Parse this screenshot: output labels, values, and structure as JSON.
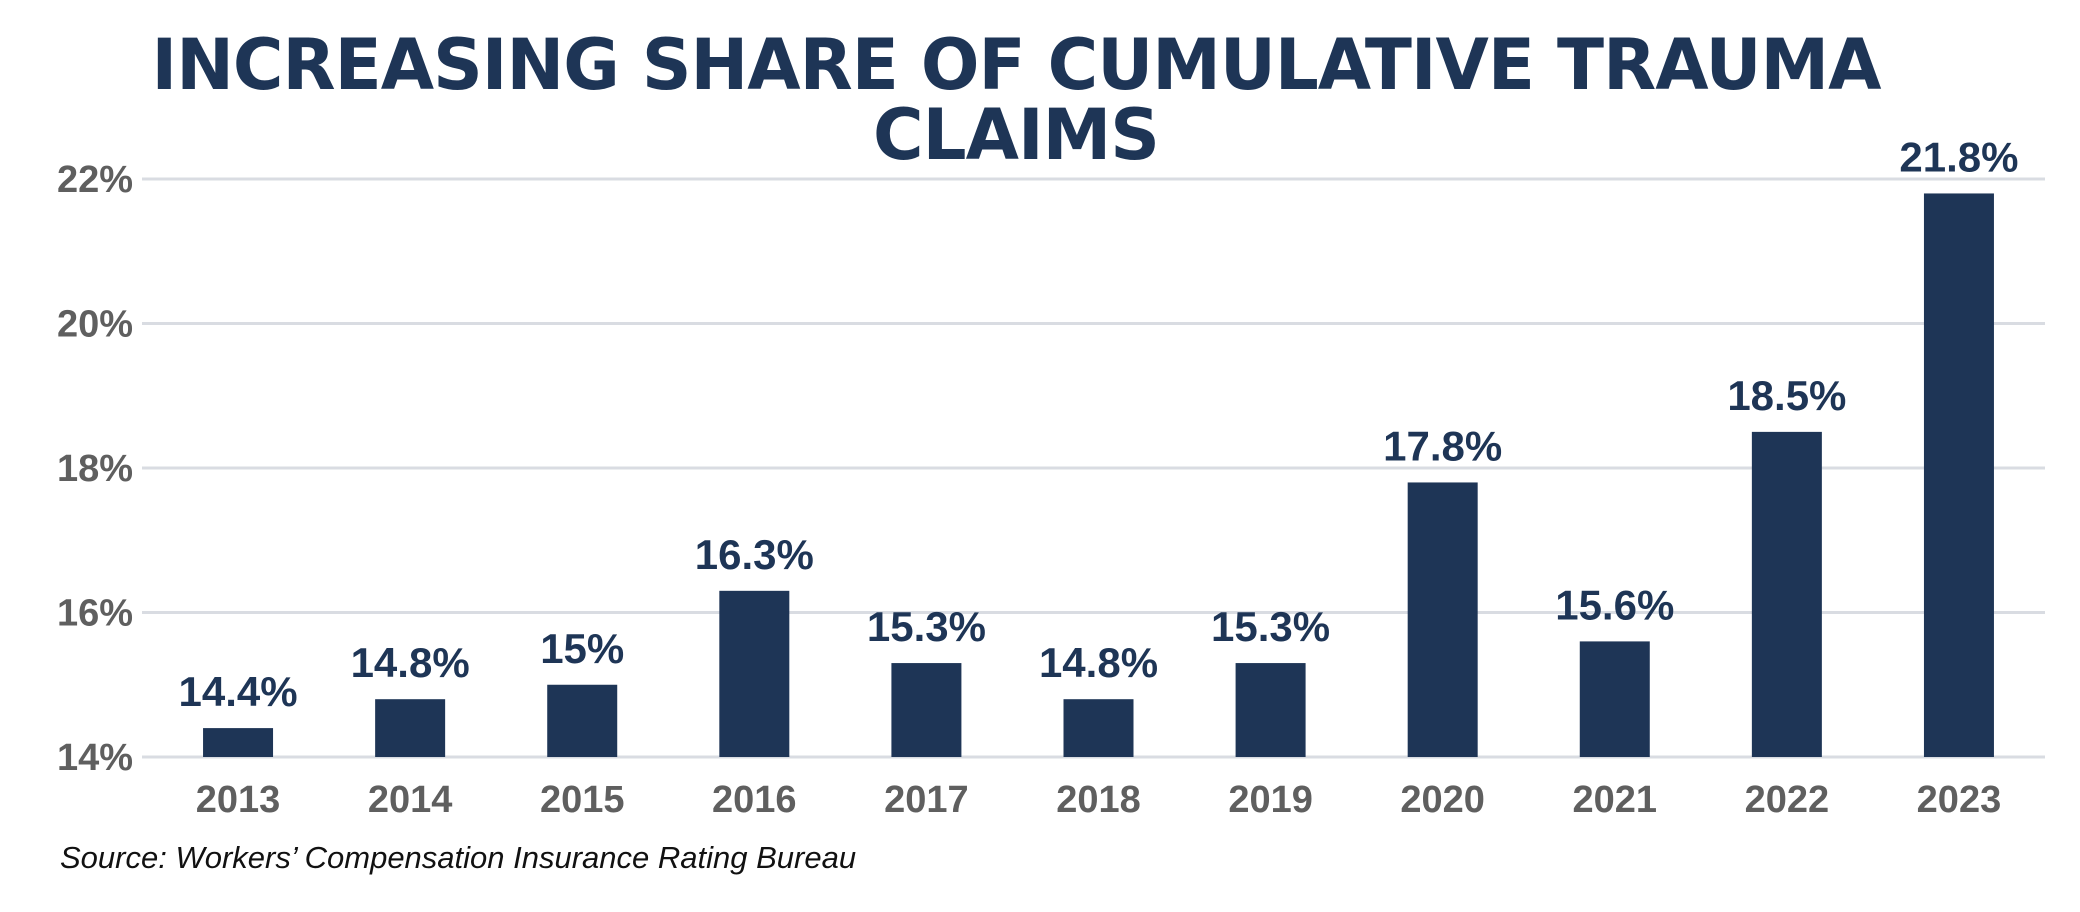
{
  "chart_data": {
    "type": "bar",
    "title": "INCREASING SHARE OF CUMULATIVE TRAUMA CLAIMS",
    "categories": [
      "2013",
      "2014",
      "2015",
      "2016",
      "2017",
      "2018",
      "2019",
      "2020",
      "2021",
      "2022",
      "2023"
    ],
    "values": [
      14.4,
      14.8,
      15.0,
      16.3,
      15.3,
      14.8,
      15.3,
      17.8,
      15.6,
      18.5,
      21.8
    ],
    "data_labels": [
      "14.4%",
      "14.8%",
      "15%",
      "16.3%",
      "15.3%",
      "14.8%",
      "15.3%",
      "17.8%",
      "15.6%",
      "18.5%",
      "21.8%"
    ],
    "ylim": [
      14,
      22
    ],
    "yticks": [
      14,
      16,
      18,
      20,
      22
    ],
    "ytick_labels": [
      "14%",
      "16%",
      "18%",
      "20%",
      "22%"
    ],
    "xlabel": "",
    "ylabel": "",
    "grid": true,
    "bar_color": "#1e3556",
    "grid_color": "#d9dce2",
    "source": "Source: Workers’ Compensation Insurance Rating Bureau"
  }
}
